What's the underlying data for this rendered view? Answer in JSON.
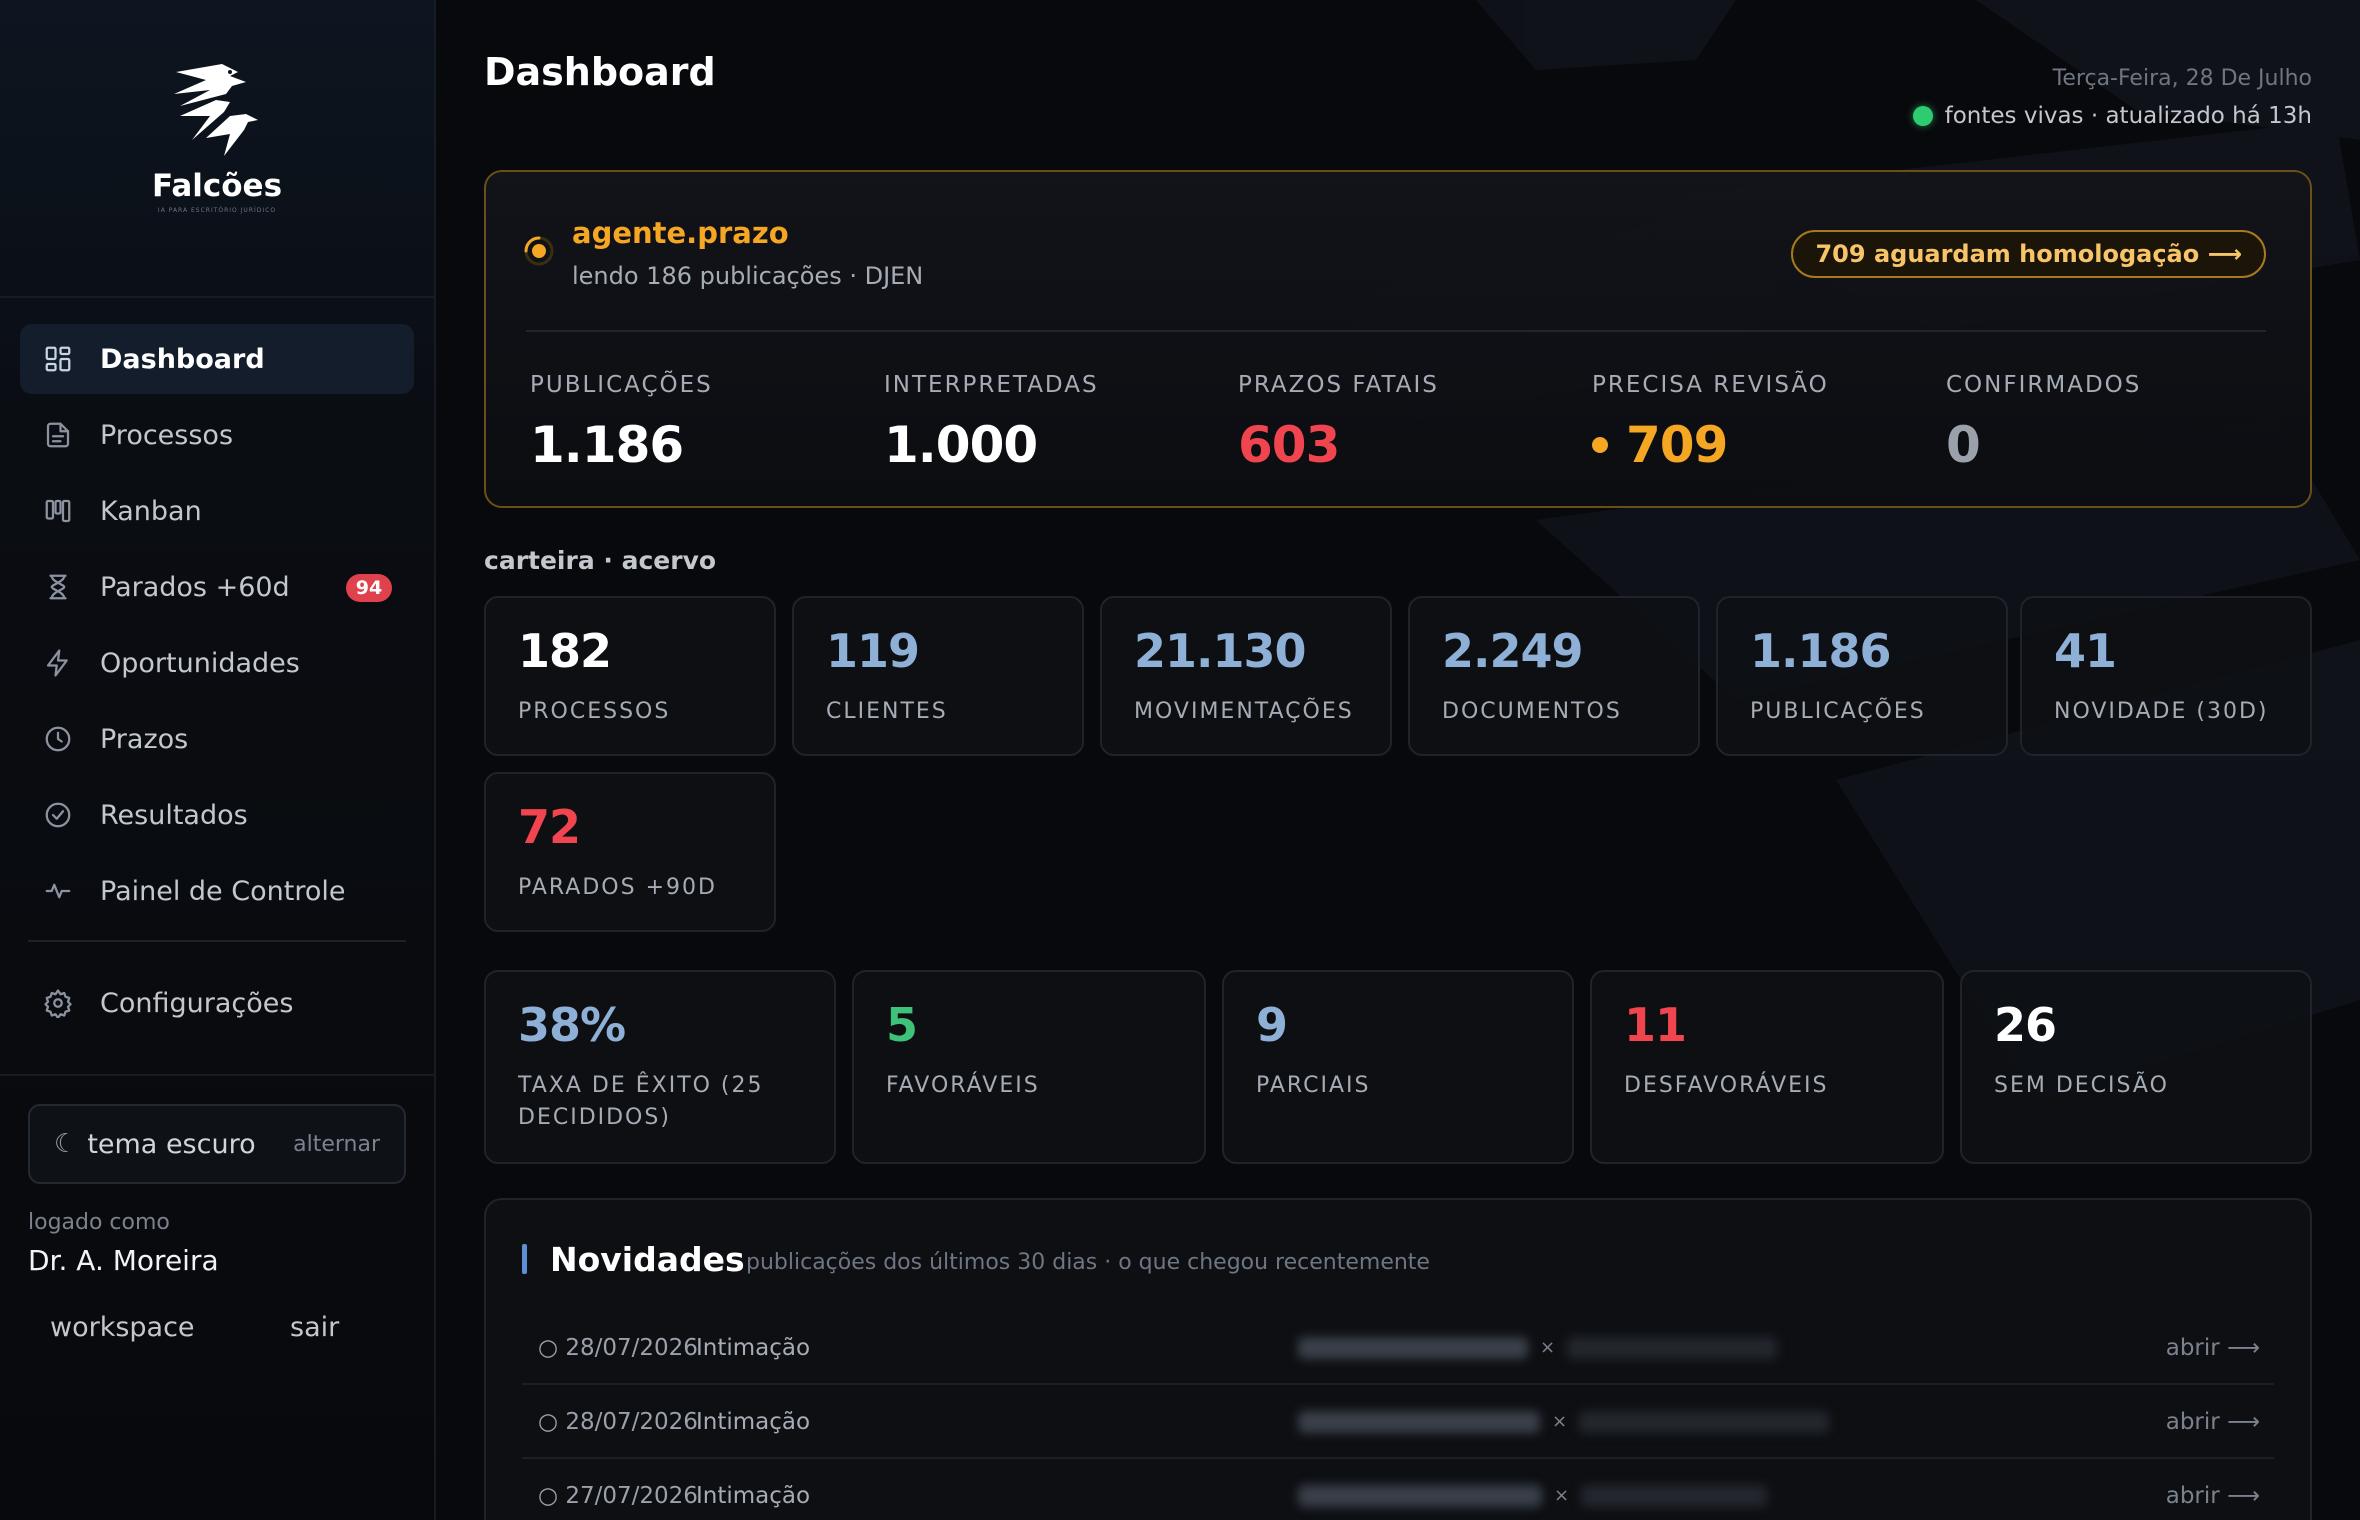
{
  "brand": {
    "name": "Falcões",
    "tagline": "IA PARA ESCRITÓRIO JURÍDICO"
  },
  "sidebar": {
    "items": [
      {
        "label": "Dashboard",
        "icon": "grid-icon",
        "active": true
      },
      {
        "label": "Processos",
        "icon": "file-icon"
      },
      {
        "label": "Kanban",
        "icon": "kanban-icon"
      },
      {
        "label": "Parados +60d",
        "icon": "hourglass-icon",
        "badge": "94"
      },
      {
        "label": "Oportunidades",
        "icon": "bolt-icon"
      },
      {
        "label": "Prazos",
        "icon": "clock-icon"
      },
      {
        "label": "Resultados",
        "icon": "check-circle-icon"
      },
      {
        "label": "Painel de Controle",
        "icon": "activity-icon"
      }
    ],
    "settings": {
      "label": "Configurações",
      "icon": "gear-icon"
    },
    "theme": {
      "label": "tema escuro",
      "toggle": "alternar"
    },
    "logged_as_label": "logado como",
    "user": "Dr. A. Moreira",
    "links": {
      "workspace": "workspace",
      "logout": "sair"
    }
  },
  "header": {
    "title": "Dashboard",
    "date": "Terça-Feira, 28 De Julho",
    "live_status": "fontes vivas · atualizado há 13h"
  },
  "agent": {
    "name": "agente.prazo",
    "status": "lendo 186 publicações · DJEN",
    "action": "709 aguardam homologação ⟶",
    "stats": [
      {
        "label": "PUBLICAÇÕES",
        "value": "1.186",
        "tone": "white"
      },
      {
        "label": "INTERPRETADAS",
        "value": "1.000",
        "tone": "white"
      },
      {
        "label": "PRAZOS FATAIS",
        "value": "603",
        "tone": "red"
      },
      {
        "label": "PRECISA REVISÃO",
        "value": "709",
        "tone": "orange"
      },
      {
        "label": "CONFIRMADOS",
        "value": "0",
        "tone": "gray"
      }
    ]
  },
  "portfolio": {
    "label": "carteira · acervo",
    "cards": [
      {
        "value": "182",
        "label": "PROCESSOS",
        "tone": "white"
      },
      {
        "value": "119",
        "label": "CLIENTES",
        "tone": "blue"
      },
      {
        "value": "21.130",
        "label": "MOVIMENTAÇÕES",
        "tone": "blue"
      },
      {
        "value": "2.249",
        "label": "DOCUMENTOS",
        "tone": "blue"
      },
      {
        "value": "1.186",
        "label": "PUBLICAÇÕES",
        "tone": "blue"
      },
      {
        "value": "41",
        "label": "NOVIDADE (30D)",
        "tone": "blue"
      },
      {
        "value": "72",
        "label": "PARADOS +90D",
        "tone": "red"
      }
    ]
  },
  "results": {
    "cards": [
      {
        "value": "38%",
        "label": "TAXA DE ÊXITO (25 DECIDIDOS)",
        "tone": "blue"
      },
      {
        "value": "5",
        "label": "FAVORÁVEIS",
        "tone": "green"
      },
      {
        "value": "9",
        "label": "PARCIAIS",
        "tone": "blue"
      },
      {
        "value": "11",
        "label": "DESFAVORÁVEIS",
        "tone": "red"
      },
      {
        "value": "26",
        "label": "SEM DECISÃO",
        "tone": "white"
      }
    ]
  },
  "novidades": {
    "title": "Novidades",
    "subtitle": "publicações dos últimos 30 dias · o que chegou recentemente",
    "open_label": "abrir ⟶",
    "rows": [
      {
        "date": "○ 28/07/2026",
        "type": "Intimação"
      },
      {
        "date": "○ 28/07/2026",
        "type": "Intimação"
      },
      {
        "date": "○ 27/07/2026",
        "type": "Intimação"
      }
    ]
  },
  "colors": {
    "accent_orange": "#f5a623",
    "danger_red": "#f0454f",
    "positive_green": "#3ec27a",
    "info_blue": "#8fb0d6",
    "live_green": "#2ecc71"
  }
}
